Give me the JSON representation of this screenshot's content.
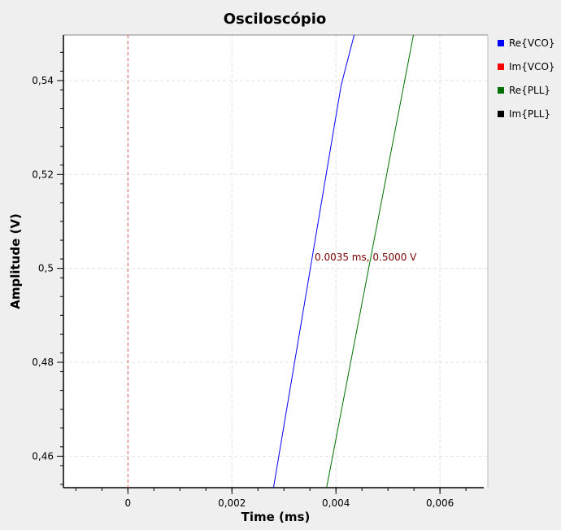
{
  "chart_data": {
    "type": "line",
    "title": "Osciloscópio",
    "xlabel": "Time (ms)",
    "ylabel": "Amplitude (V)",
    "xlim": [
      -0.00124,
      0.00692
    ],
    "ylim": [
      0.4533,
      0.5497
    ],
    "x_ticks": [
      0,
      0.002,
      0.004,
      0.006
    ],
    "x_tick_labels": [
      "0",
      "0,002",
      "0,004",
      "0,006"
    ],
    "y_ticks": [
      0.46,
      0.48,
      0.5,
      0.52,
      0.54
    ],
    "y_tick_labels": [
      "0,46",
      "0,48",
      "0,5",
      "0,52",
      "0,54"
    ],
    "grid": true,
    "legend_position": "right",
    "trigger_marker": {
      "x": 0,
      "color": "#e06060"
    },
    "cursor_label": "0.0035 ms, 0.5000 V",
    "series": [
      {
        "name": "Re{VCO}",
        "color": "#0000ff",
        "x": [
          0.0028,
          0.0041,
          0.00435
        ],
        "y": [
          0.4533,
          0.539,
          0.5497
        ]
      },
      {
        "name": "Im{VCO}",
        "color": "#ff0000",
        "x": [],
        "y": []
      },
      {
        "name": "Re{PLL}",
        "color": "#007000",
        "x": [
          0.00382,
          0.00549
        ],
        "y": [
          0.4533,
          0.5497
        ]
      },
      {
        "name": "Im{PLL}",
        "color": "#000000",
        "x": [],
        "y": []
      }
    ]
  }
}
